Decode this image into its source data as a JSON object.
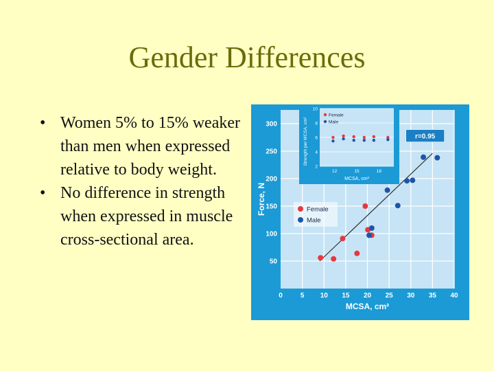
{
  "slide": {
    "title": "Gender Differences",
    "bullets": [
      "Women 5% to 15% weaker than men when expressed relative to body weight.",
      "No difference in strength when expressed in muscle cross-sectional area."
    ],
    "bullet_glyph": "•"
  },
  "chart_data": [
    {
      "type": "scatter",
      "xlabel": "MCSA, cm²",
      "ylabel": "Force, N",
      "xlim": [
        0,
        40
      ],
      "ylim": [
        0,
        325
      ],
      "x_ticks": [
        0,
        5,
        10,
        15,
        20,
        25,
        30,
        35,
        40
      ],
      "y_ticks": [
        50,
        100,
        150,
        200,
        250,
        300
      ],
      "grid": true,
      "legend_position": "center-left",
      "annotation": "r=0.95",
      "trendline": {
        "x": [
          9,
          35
        ],
        "y": [
          50,
          246
        ]
      },
      "series": [
        {
          "name": "Female",
          "color": "#e8373f",
          "x": [
            9.2,
            12.2,
            14.3,
            17.6,
            19.5,
            20.1,
            21.0
          ],
          "y": [
            56,
            54,
            91,
            64,
            150,
            107,
            97
          ]
        },
        {
          "name": "Male",
          "color": "#1f55a8",
          "x": [
            20.4,
            21.0,
            24.6,
            27.0,
            29.1,
            30.4,
            32.9,
            36.1
          ],
          "y": [
            97,
            110,
            179,
            151,
            196,
            197,
            239,
            238
          ]
        }
      ]
    },
    {
      "type": "scatter",
      "xlabel": "MCSA, cm²",
      "ylabel": "Strength per MCSA, cm²",
      "xlim": [
        10,
        20
      ],
      "ylim": [
        2,
        10
      ],
      "x_ticks": [
        12,
        15,
        18
      ],
      "y_ticks": [
        2,
        4,
        6,
        8,
        10
      ],
      "legend_position": "top-left",
      "series": [
        {
          "name": "Female",
          "color": "#e8373f",
          "x": [
            11.8,
            13.2,
            14.6,
            16.0,
            17.3,
            19.2
          ],
          "y": [
            6.0,
            6.2,
            6.1,
            6.0,
            6.1,
            6.0
          ]
        },
        {
          "name": "Male",
          "color": "#1f55a8",
          "x": [
            11.8,
            13.2,
            14.6,
            16.0,
            17.3,
            19.2
          ],
          "y": [
            5.5,
            5.8,
            5.6,
            5.6,
            5.6,
            5.7
          ]
        }
      ]
    }
  ]
}
